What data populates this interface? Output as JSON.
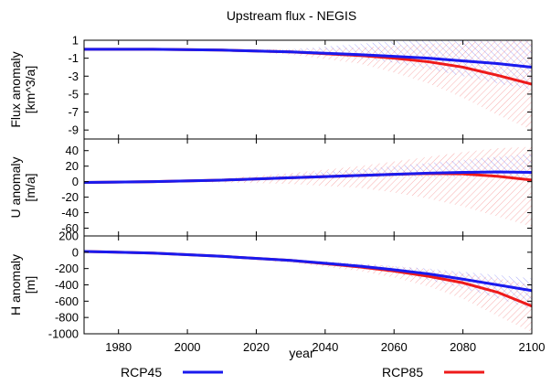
{
  "chart_data": {
    "type": "line",
    "title": "Upstream flux - NEGIS",
    "xlabel": "year",
    "xlim": [
      1970,
      2100
    ],
    "x_ticks": [
      1980,
      2000,
      2020,
      2040,
      2060,
      2080,
      2100
    ],
    "legend_placement": "bottom",
    "legend": [
      {
        "name": "RCP45",
        "color": "#1a1aee"
      },
      {
        "name": "RCP85",
        "color": "#ee1a1a"
      }
    ],
    "panels": [
      {
        "id": "flux",
        "ylabel_lines": [
          "Flux anomaly",
          "[km^3/a]"
        ],
        "ylim": [
          -10,
          1
        ],
        "y_ticks": [
          1,
          -1,
          -3,
          -5,
          -7,
          -9
        ],
        "series": [
          {
            "name": "RCP45",
            "color": "#1a1aee",
            "x": [
              1970,
              1990,
              2010,
              2030,
              2050,
              2060,
              2070,
              2080,
              2090,
              2100
            ],
            "y": [
              0,
              0,
              -0.1,
              -0.3,
              -0.6,
              -0.8,
              -1.0,
              -1.3,
              -1.6,
              -2.0
            ],
            "band_lower": [
              0,
              0,
              -0.1,
              -0.4,
              -1.0,
              -1.5,
              -2.2,
              -3.0,
              -3.8,
              -4.5
            ],
            "band_upper": [
              0,
              0,
              0,
              0,
              0.6,
              0.9,
              1.0,
              1.0,
              1.0,
              1.0
            ]
          },
          {
            "name": "RCP85",
            "color": "#ee1a1a",
            "x": [
              1970,
              1990,
              2010,
              2030,
              2050,
              2060,
              2070,
              2080,
              2090,
              2100
            ],
            "y": [
              0,
              0,
              -0.1,
              -0.3,
              -0.7,
              -1.0,
              -1.4,
              -2.0,
              -2.9,
              -3.9
            ],
            "band_lower": [
              0,
              0,
              -0.1,
              -0.6,
              -1.6,
              -2.6,
              -3.8,
              -5.4,
              -7.3,
              -9.0
            ],
            "band_upper": [
              0,
              0,
              0,
              0,
              0.2,
              0.4,
              0.6,
              0.8,
              0.9,
              1.0
            ]
          }
        ]
      },
      {
        "id": "u",
        "ylabel_lines": [
          "U anomaly",
          "[m/a]"
        ],
        "ylim": [
          -70,
          55
        ],
        "y_ticks": [
          40,
          20,
          0,
          -20,
          -40,
          -60
        ],
        "series": [
          {
            "name": "RCP45",
            "color": "#1a1aee",
            "x": [
              1970,
              1990,
              2010,
              2030,
              2050,
              2060,
              2070,
              2080,
              2090,
              2100
            ],
            "y": [
              -1,
              0,
              2,
              5,
              8,
              9.5,
              11,
              12,
              12.5,
              12
            ],
            "band_lower": [
              -1,
              0,
              1,
              3,
              5,
              6,
              6,
              6,
              6,
              5
            ],
            "band_upper": [
              -1,
              0,
              3,
              9,
              16,
              20,
              24,
              28,
              32,
              36
            ]
          },
          {
            "name": "RCP85",
            "color": "#ee1a1a",
            "x": [
              1970,
              1990,
              2010,
              2030,
              2050,
              2060,
              2070,
              2080,
              2090,
              2100
            ],
            "y": [
              -1,
              0,
              2,
              5,
              8,
              9.5,
              10.5,
              10,
              7,
              2
            ],
            "band_lower": [
              -1,
              0,
              -1,
              -3,
              -8,
              -14,
              -22,
              -32,
              -45,
              -58
            ],
            "band_upper": [
              -1,
              0,
              4,
              11,
              20,
              26,
              32,
              38,
              43,
              45
            ]
          }
        ]
      },
      {
        "id": "h",
        "ylabel_lines": [
          "H anomaly",
          "[m]"
        ],
        "ylim": [
          -1000,
          200
        ],
        "y_ticks": [
          200,
          0,
          -200,
          -400,
          -600,
          -800,
          -1000
        ],
        "series": [
          {
            "name": "RCP45",
            "color": "#1a1aee",
            "x": [
              1970,
              1990,
              2010,
              2030,
              2050,
              2060,
              2070,
              2080,
              2090,
              2100
            ],
            "y": [
              10,
              -10,
              -50,
              -100,
              -170,
              -215,
              -265,
              -330,
              -400,
              -470
            ],
            "band_lower": [
              10,
              -10,
              -55,
              -120,
              -200,
              -260,
              -340,
              -440,
              -560,
              -700
            ],
            "band_upper": [
              10,
              -10,
              -45,
              -85,
              -140,
              -170,
              -200,
              -240,
              -280,
              -320
            ]
          },
          {
            "name": "RCP85",
            "color": "#ee1a1a",
            "x": [
              1970,
              1990,
              2010,
              2030,
              2050,
              2060,
              2070,
              2080,
              2090,
              2100
            ],
            "y": [
              10,
              -10,
              -50,
              -100,
              -180,
              -230,
              -295,
              -375,
              -490,
              -660
            ],
            "band_lower": [
              10,
              -10,
              -55,
              -130,
              -230,
              -310,
              -420,
              -570,
              -780,
              -980
            ],
            "band_upper": [
              10,
              -10,
              -45,
              -85,
              -140,
              -170,
              -210,
              -260,
              -320,
              -400
            ]
          }
        ]
      }
    ]
  }
}
